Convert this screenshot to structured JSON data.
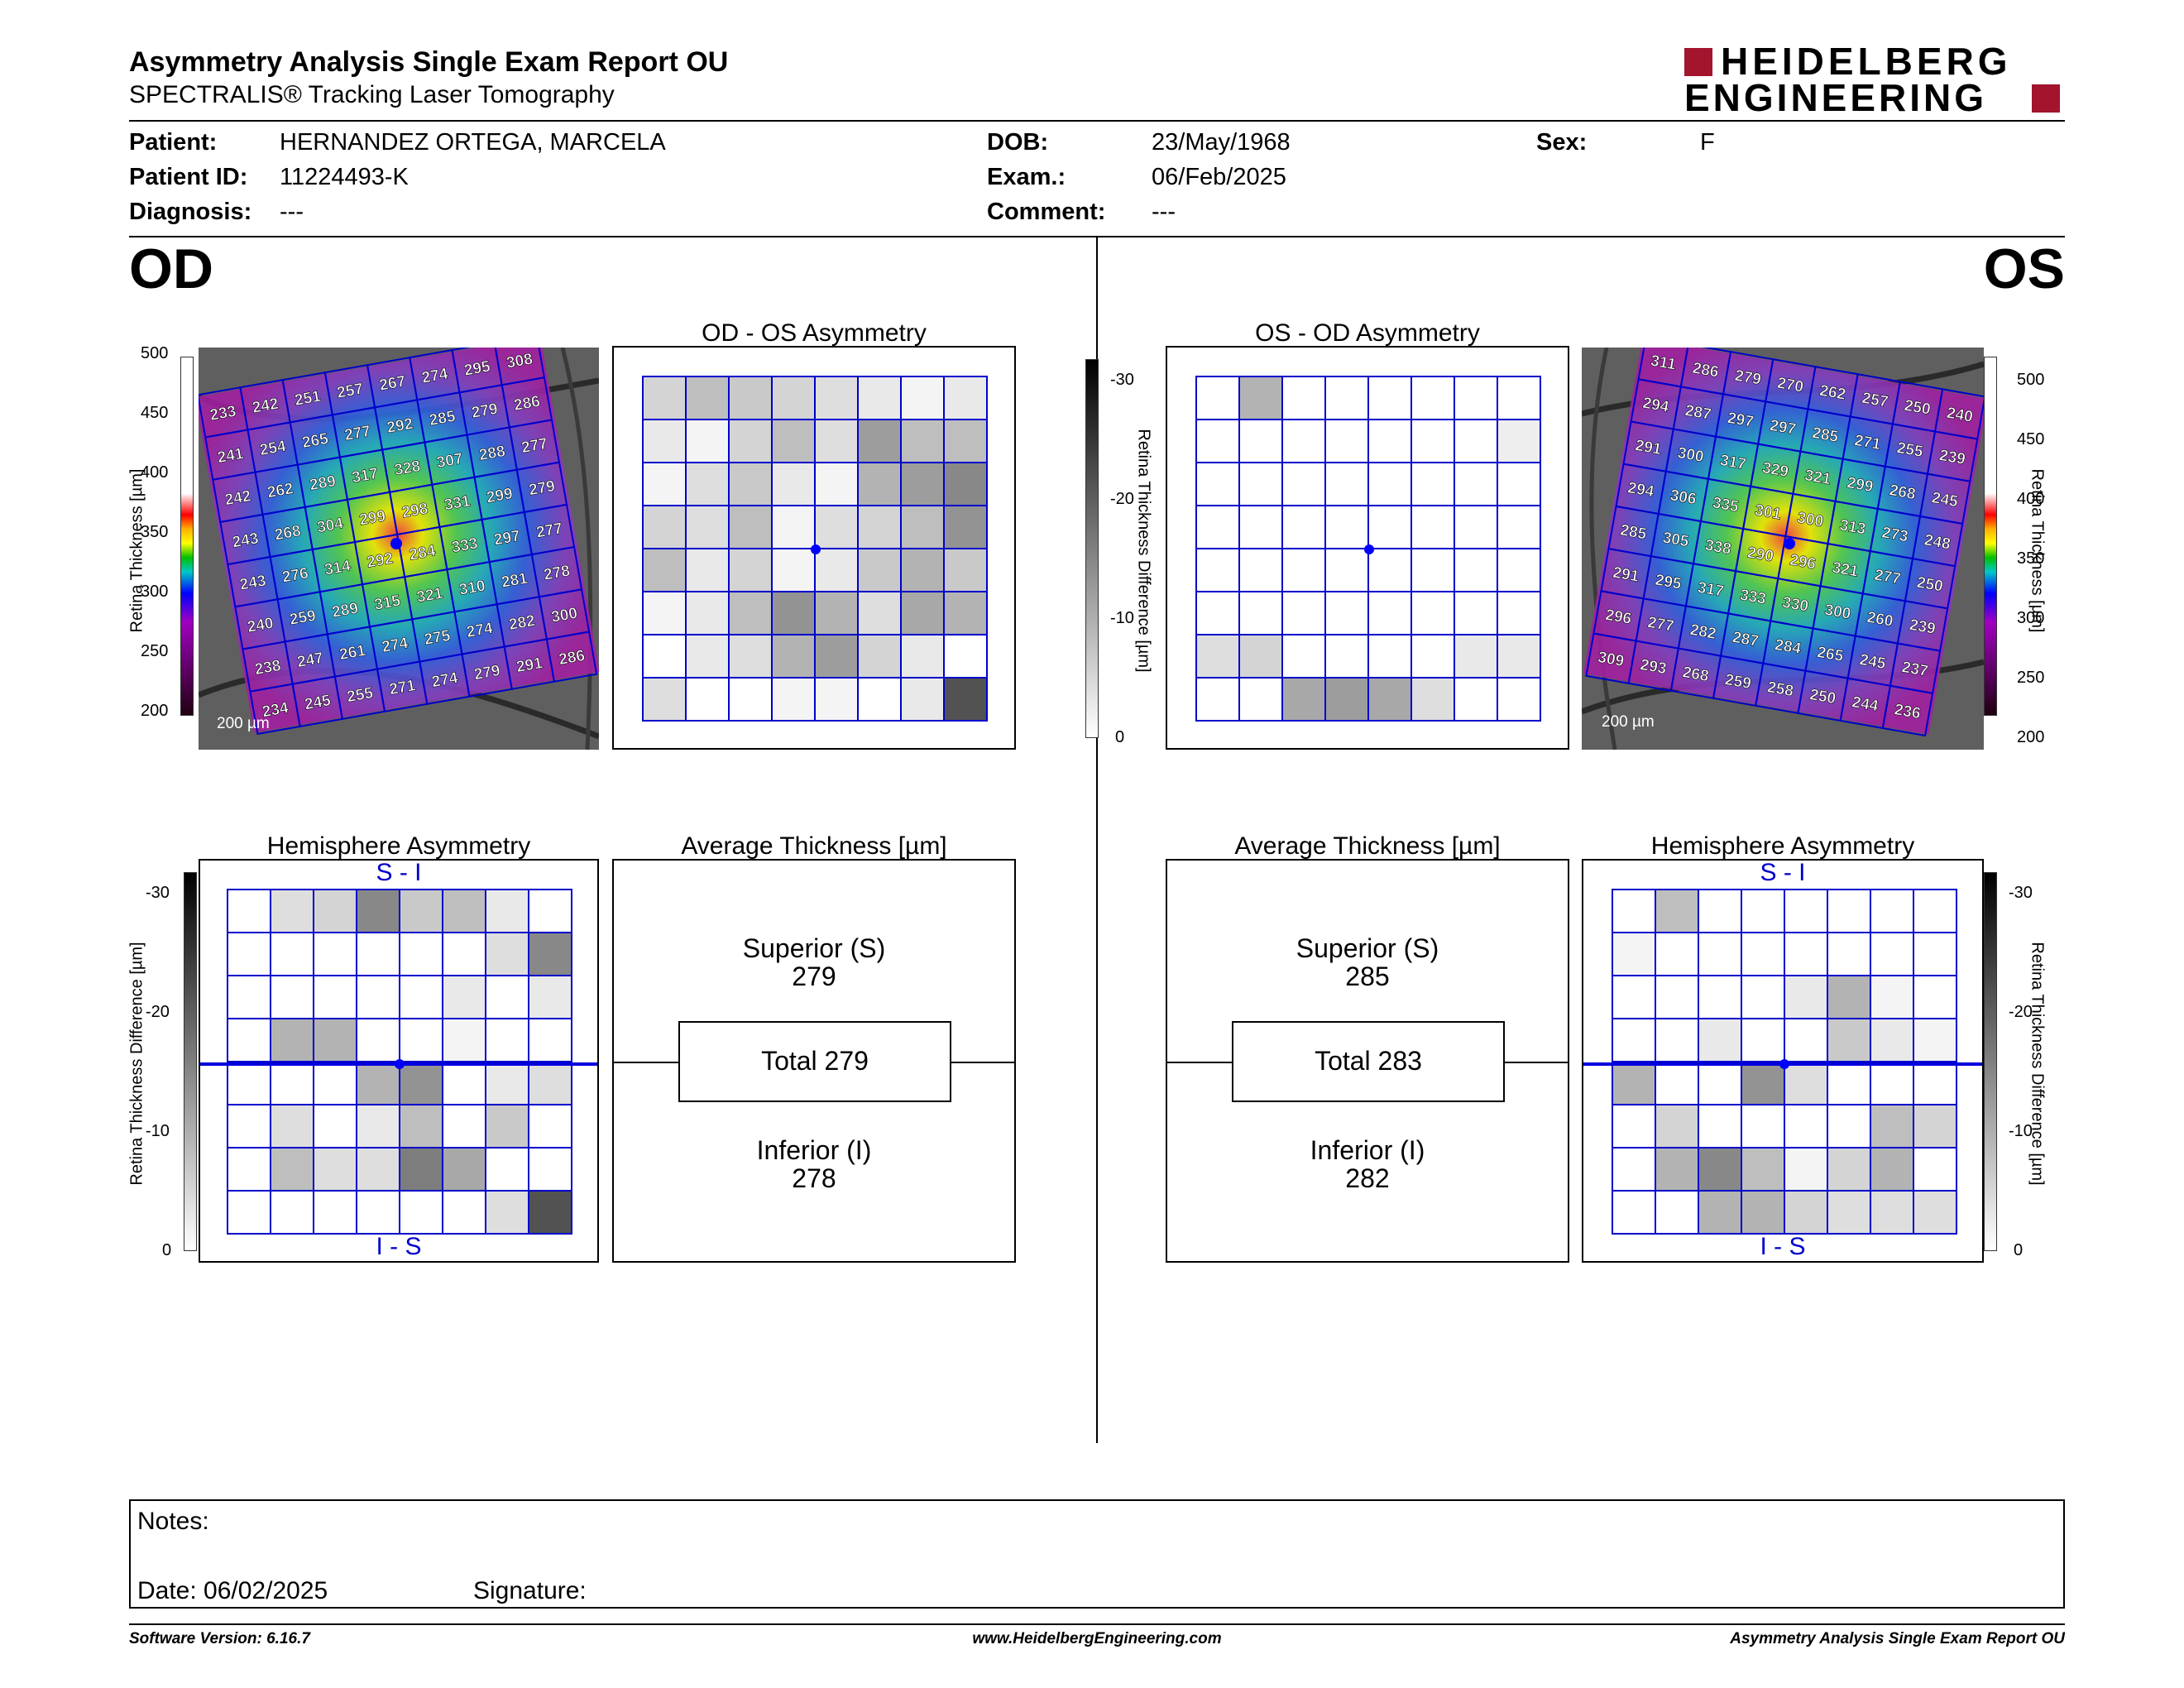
{
  "header": {
    "title": "Asymmetry Analysis Single Exam Report OU",
    "subtitle": "SPECTRALIS® Tracking Laser Tomography",
    "logo_line1": "HEIDELBERG",
    "logo_line2": "ENGINEERING",
    "brand_color": "#a3142d"
  },
  "patient": {
    "patient_label": "Patient:",
    "patient": "HERNANDEZ ORTEGA, MARCELA",
    "id_label": "Patient ID:",
    "id": "11224493-K",
    "diagnosis_label": "Diagnosis:",
    "diagnosis": "---",
    "dob_label": "DOB:",
    "dob": "23/May/1968",
    "exam_label": "Exam.:",
    "exam": "06/Feb/2025",
    "comment_label": "Comment:",
    "comment": "---",
    "sex_label": "Sex:",
    "sex": "F"
  },
  "od": {
    "eye": "OD",
    "asym_title": "OD - OS Asymmetry",
    "hemi_title": "Hemisphere Asymmetry",
    "avg_title": "Average Thickness [µm]",
    "superior_label": "Superior (S)",
    "superior": "279",
    "total": "Total 279",
    "inferior_label": "Inferior (I)",
    "inferior": "278",
    "si": "S - I",
    "is": "I - S",
    "scale_bar": "200 µm",
    "thickness_grid": [
      [
        233,
        242,
        251,
        257,
        267,
        274,
        295,
        308
      ],
      [
        241,
        254,
        265,
        277,
        292,
        285,
        279,
        286
      ],
      [
        242,
        262,
        289,
        317,
        328,
        307,
        288,
        277
      ],
      [
        243,
        268,
        304,
        299,
        298,
        331,
        299,
        279
      ],
      [
        243,
        276,
        314,
        292,
        284,
        333,
        297,
        277
      ],
      [
        240,
        259,
        289,
        315,
        321,
        310,
        281,
        278
      ],
      [
        238,
        247,
        261,
        274,
        275,
        274,
        282,
        300
      ],
      [
        234,
        245,
        255,
        271,
        274,
        279,
        291,
        286
      ]
    ],
    "asym_grid": [
      [
        0.2,
        0.3,
        0.25,
        0.2,
        0.15,
        0.1,
        0.05,
        0.1
      ],
      [
        0.1,
        0.05,
        0.2,
        0.3,
        0.15,
        0.45,
        0.3,
        0.3
      ],
      [
        0.05,
        0.15,
        0.25,
        0.1,
        0.05,
        0.35,
        0.45,
        0.55
      ],
      [
        0.2,
        0.15,
        0.3,
        0.05,
        0.15,
        0.2,
        0.3,
        0.5
      ],
      [
        0.3,
        0.1,
        0.2,
        0.05,
        0.1,
        0.25,
        0.35,
        0.25
      ],
      [
        0.05,
        0.1,
        0.3,
        0.5,
        0.35,
        0.15,
        0.4,
        0.35
      ],
      [
        0,
        0.1,
        0.15,
        0.35,
        0.45,
        0.2,
        0.1,
        0
      ],
      [
        0.15,
        0,
        0,
        0.05,
        0.05,
        0,
        0.1,
        0.8
      ]
    ],
    "hemi_grid": [
      [
        0,
        0.15,
        0.2,
        0.55,
        0.25,
        0.3,
        0.1,
        0
      ],
      [
        0,
        0,
        0,
        0,
        0,
        0,
        0.15,
        0.55
      ],
      [
        0,
        0,
        0,
        0,
        0,
        0.1,
        0,
        0.1
      ],
      [
        0,
        0.35,
        0.35,
        0,
        0,
        0.05,
        0,
        0
      ],
      [
        0,
        0,
        0,
        0.35,
        0.5,
        0,
        0.1,
        0.15
      ],
      [
        0,
        0.15,
        0,
        0.1,
        0.3,
        0,
        0.25,
        0
      ],
      [
        0,
        0.3,
        0.15,
        0.15,
        0.6,
        0.4,
        0,
        0
      ],
      [
        0,
        0,
        0,
        0,
        0,
        0,
        0.15,
        0.8
      ]
    ]
  },
  "os": {
    "eye": "OS",
    "asym_title": "OS - OD Asymmetry",
    "hemi_title": "Hemisphere Asymmetry",
    "avg_title": "Average Thickness [µm]",
    "superior_label": "Superior (S)",
    "superior": "285",
    "total": "Total 283",
    "inferior_label": "Inferior (I)",
    "inferior": "282",
    "si": "S - I",
    "is": "I - S",
    "scale_bar": "200 µm",
    "thickness_grid": [
      [
        311,
        286,
        279,
        270,
        262,
        257,
        250,
        240
      ],
      [
        294,
        287,
        297,
        297,
        285,
        271,
        255,
        239
      ],
      [
        291,
        300,
        317,
        329,
        321,
        299,
        268,
        245
      ],
      [
        294,
        306,
        335,
        301,
        300,
        313,
        273,
        248
      ],
      [
        285,
        305,
        338,
        290,
        296,
        321,
        277,
        250
      ],
      [
        291,
        295,
        317,
        333,
        330,
        300,
        260,
        239
      ],
      [
        296,
        277,
        282,
        287,
        284,
        265,
        245,
        237
      ],
      [
        309,
        293,
        268,
        259,
        258,
        250,
        244,
        236
      ]
    ],
    "asym_grid": [
      [
        0,
        0.35,
        0,
        0,
        0,
        0,
        0,
        0
      ],
      [
        0,
        0,
        0,
        0,
        0,
        0,
        0,
        0.08
      ],
      [
        0,
        0,
        0,
        0,
        0,
        0,
        0,
        0
      ],
      [
        0,
        0,
        0,
        0,
        0,
        0,
        0,
        0
      ],
      [
        0,
        0,
        0,
        0,
        0,
        0,
        0,
        0
      ],
      [
        0,
        0,
        0,
        0,
        0,
        0,
        0,
        0
      ],
      [
        0.15,
        0.2,
        0,
        0,
        0,
        0,
        0.1,
        0.1
      ],
      [
        0,
        0,
        0.4,
        0.45,
        0.4,
        0.15,
        0,
        0
      ]
    ],
    "hemi_grid": [
      [
        0,
        0.3,
        0,
        0,
        0,
        0,
        0,
        0
      ],
      [
        0.05,
        0,
        0,
        0,
        0,
        0,
        0,
        0
      ],
      [
        0,
        0,
        0,
        0,
        0.1,
        0.35,
        0.05,
        0
      ],
      [
        0,
        0,
        0.1,
        0,
        0,
        0.25,
        0.1,
        0.05
      ],
      [
        0.35,
        0,
        0,
        0.5,
        0.15,
        0,
        0,
        0
      ],
      [
        0,
        0.2,
        0,
        0,
        0,
        0,
        0.3,
        0.2
      ],
      [
        0,
        0.35,
        0.55,
        0.3,
        0.05,
        0.2,
        0.35,
        0
      ],
      [
        0,
        0,
        0.35,
        0.35,
        0.2,
        0.15,
        0.15,
        0.15
      ]
    ]
  },
  "scales": {
    "thickness_label": "Retina Thickness [µm]",
    "thickness_ticks": [
      "500",
      "450",
      "400",
      "350",
      "300",
      "250",
      "200"
    ],
    "diff_label": "Retina Thickness Difference [µm]",
    "diff_ticks": [
      "-30",
      "-20",
      "-10",
      "0"
    ]
  },
  "notes": {
    "notes_label": "Notes:",
    "date_label": "Date: 06/02/2025",
    "signature_label": "Signature:"
  },
  "footer": {
    "software": "Software Version: 6.16.7",
    "website": "www.HeidelbergEngineering.com",
    "report": "Asymmetry Analysis Single Exam Report OU"
  }
}
